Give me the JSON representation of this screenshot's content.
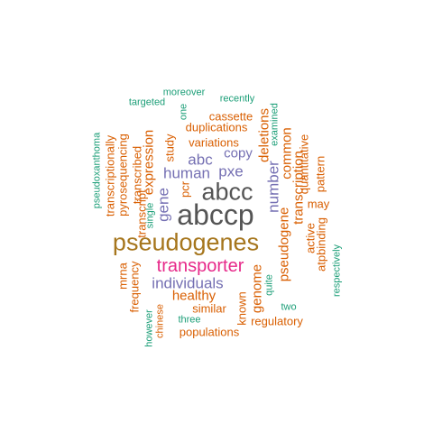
{
  "palette": {
    "teal": "#1b9e77",
    "orange": "#d95f02",
    "purple": "#7570b3",
    "magenta": "#e7298a",
    "olive": "#a6761d",
    "gray": "#555555"
  },
  "words": [
    {
      "text": "abccp",
      "size": 7,
      "color": "gray",
      "vertical": false
    },
    {
      "text": "abcc",
      "size": 6,
      "color": "gray",
      "vertical": false
    },
    {
      "text": "pseudogenes",
      "size": 6,
      "color": "olive",
      "vertical": false
    },
    {
      "text": "transporter",
      "size": 5,
      "color": "magenta",
      "vertical": false
    },
    {
      "text": "individuals",
      "size": 4,
      "color": "purple",
      "vertical": false
    },
    {
      "text": "human",
      "size": 4,
      "color": "purple",
      "vertical": false
    },
    {
      "text": "pxe",
      "size": 4,
      "color": "purple",
      "vertical": false
    },
    {
      "text": "abc",
      "size": 4,
      "color": "purple",
      "vertical": false
    },
    {
      "text": "gene",
      "size": 4,
      "color": "purple",
      "vertical": true
    },
    {
      "text": "number",
      "size": 4,
      "color": "purple",
      "vertical": true
    },
    {
      "text": "copy",
      "size": 3,
      "color": "purple",
      "vertical": false
    },
    {
      "text": "expression",
      "size": 3,
      "color": "orange",
      "vertical": true
    },
    {
      "text": "healthy",
      "size": 3,
      "color": "orange",
      "vertical": false
    },
    {
      "text": "pseudogene",
      "size": 3,
      "color": "orange",
      "vertical": true
    },
    {
      "text": "genome",
      "size": 3,
      "color": "orange",
      "vertical": true
    },
    {
      "text": "transcription",
      "size": 3,
      "color": "orange",
      "vertical": true
    },
    {
      "text": "deletions",
      "size": 3,
      "color": "orange",
      "vertical": true
    },
    {
      "text": "common",
      "size": 3,
      "color": "orange",
      "vertical": true
    },
    {
      "text": "variations",
      "size": 2,
      "color": "orange",
      "vertical": false
    },
    {
      "text": "duplications",
      "size": 2,
      "color": "orange",
      "vertical": false
    },
    {
      "text": "cassette",
      "size": 2,
      "color": "orange",
      "vertical": false
    },
    {
      "text": "pyrosequencing",
      "size": 2,
      "color": "orange",
      "vertical": true
    },
    {
      "text": "transcriptionally",
      "size": 2,
      "color": "orange",
      "vertical": true
    },
    {
      "text": "transcribed",
      "size": 2,
      "color": "orange",
      "vertical": true
    },
    {
      "text": "transcript",
      "size": 2,
      "color": "orange",
      "vertical": true
    },
    {
      "text": "study",
      "size": 2,
      "color": "orange",
      "vertical": true
    },
    {
      "text": "pcr",
      "size": 2,
      "color": "orange",
      "vertical": true
    },
    {
      "text": "quantitative",
      "size": 2,
      "color": "orange",
      "vertical": true
    },
    {
      "text": "active",
      "size": 2,
      "color": "orange",
      "vertical": true
    },
    {
      "text": "pattern",
      "size": 2,
      "color": "orange",
      "vertical": true
    },
    {
      "text": "atpbinding",
      "size": 2,
      "color": "orange",
      "vertical": true
    },
    {
      "text": "may",
      "size": 2,
      "color": "orange",
      "vertical": false
    },
    {
      "text": "known",
      "size": 2,
      "color": "orange",
      "vertical": true
    },
    {
      "text": "similar",
      "size": 2,
      "color": "orange",
      "vertical": false
    },
    {
      "text": "regulatory",
      "size": 2,
      "color": "orange",
      "vertical": false
    },
    {
      "text": "populations",
      "size": 2,
      "color": "orange",
      "vertical": false
    },
    {
      "text": "mrna",
      "size": 2,
      "color": "orange",
      "vertical": true
    },
    {
      "text": "frequency",
      "size": 2,
      "color": "orange",
      "vertical": true
    },
    {
      "text": "chinese",
      "size": 1,
      "color": "orange",
      "vertical": true
    },
    {
      "text": "moreover",
      "size": 1,
      "color": "teal",
      "vertical": false
    },
    {
      "text": "recently",
      "size": 1,
      "color": "teal",
      "vertical": false
    },
    {
      "text": "targeted",
      "size": 1,
      "color": "teal",
      "vertical": false
    },
    {
      "text": "one",
      "size": 1,
      "color": "teal",
      "vertical": true
    },
    {
      "text": "examined",
      "size": 1,
      "color": "teal",
      "vertical": true
    },
    {
      "text": "pseudoxanthoma",
      "size": 1,
      "color": "teal",
      "vertical": true
    },
    {
      "text": "single",
      "size": 1,
      "color": "teal",
      "vertical": true
    },
    {
      "text": "quite",
      "size": 1,
      "color": "teal",
      "vertical": true
    },
    {
      "text": "two",
      "size": 1,
      "color": "teal",
      "vertical": false
    },
    {
      "text": "three",
      "size": 1,
      "color": "teal",
      "vertical": false
    },
    {
      "text": "however",
      "size": 1,
      "color": "teal",
      "vertical": true
    },
    {
      "text": "respectively",
      "size": 1,
      "color": "teal",
      "vertical": true
    }
  ]
}
